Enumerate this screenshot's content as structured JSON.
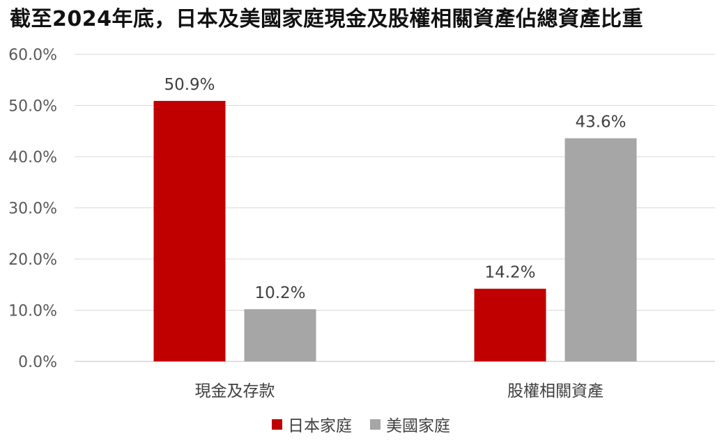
{
  "chart_data": {
    "type": "bar",
    "title": "截至2024年底，日本及美國家庭現金及股權相關資產佔總資產比重",
    "categories": [
      "現金及存款",
      "股權相關資產"
    ],
    "series": [
      {
        "name": "日本家庭",
        "values": [
          50.9,
          14.2
        ],
        "labels": [
          "50.9%",
          "14.2%"
        ],
        "color": "#C00000"
      },
      {
        "name": "美國家庭",
        "values": [
          10.2,
          43.6
        ],
        "labels": [
          "10.2%",
          "43.6%"
        ],
        "color": "#A6A6A6"
      }
    ],
    "y_ticks": [
      "0.0%",
      "10.0%",
      "20.0%",
      "30.0%",
      "40.0%",
      "50.0%",
      "60.0%"
    ],
    "ylim": [
      0,
      60
    ],
    "xlabel": "",
    "ylabel": "",
    "grid": true,
    "legend_position": "bottom"
  }
}
